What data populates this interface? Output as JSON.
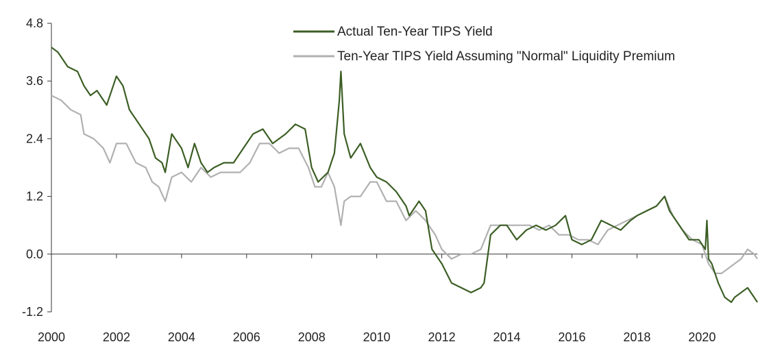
{
  "chart_data": {
    "type": "line",
    "title": "",
    "xlabel": "",
    "ylabel": "",
    "xlim": [
      2000,
      2021.7
    ],
    "ylim": [
      -1.2,
      4.8
    ],
    "x_ticks": [
      "2000",
      "2002",
      "2004",
      "2006",
      "2008",
      "2010",
      "2012",
      "2014",
      "2016",
      "2018",
      "2020"
    ],
    "y_ticks": [
      "4.8",
      "3.6",
      "2.4",
      "1.2",
      "0.0",
      "-1.2"
    ],
    "grid": false,
    "legend_position": "top-right",
    "series": [
      {
        "name": "Actual Ten-Year TIPS Yield",
        "color": "#3b5e24",
        "x": [
          2000.0,
          2000.2,
          2000.5,
          2000.8,
          2001.0,
          2001.2,
          2001.4,
          2001.7,
          2002.0,
          2002.2,
          2002.4,
          2002.6,
          2002.8,
          2003.0,
          2003.2,
          2003.4,
          2003.5,
          2003.7,
          2004.0,
          2004.2,
          2004.4,
          2004.6,
          2004.8,
          2005.0,
          2005.3,
          2005.6,
          2005.9,
          2006.2,
          2006.5,
          2006.8,
          2007.0,
          2007.2,
          2007.5,
          2007.8,
          2008.0,
          2008.2,
          2008.5,
          2008.7,
          2008.85,
          2008.9,
          2009.0,
          2009.2,
          2009.5,
          2009.8,
          2010.0,
          2010.3,
          2010.6,
          2010.9,
          2011.0,
          2011.3,
          2011.5,
          2011.7,
          2011.8,
          2012.0,
          2012.3,
          2012.6,
          2012.9,
          2013.2,
          2013.3,
          2013.5,
          2013.8,
          2014.0,
          2014.3,
          2014.6,
          2014.9,
          2015.2,
          2015.5,
          2015.8,
          2016.0,
          2016.3,
          2016.6,
          2016.9,
          2017.2,
          2017.5,
          2017.8,
          2018.0,
          2018.3,
          2018.6,
          2018.85,
          2019.0,
          2019.3,
          2019.6,
          2019.9,
          2020.1,
          2020.15,
          2020.2,
          2020.3,
          2020.5,
          2020.7,
          2020.9,
          2021.0,
          2021.2,
          2021.4,
          2021.6,
          2021.7
        ],
        "values": [
          4.3,
          4.2,
          3.9,
          3.8,
          3.5,
          3.3,
          3.4,
          3.1,
          3.7,
          3.5,
          3.0,
          2.8,
          2.6,
          2.4,
          2.0,
          1.9,
          1.7,
          2.5,
          2.2,
          1.8,
          2.3,
          1.9,
          1.7,
          1.8,
          1.9,
          1.9,
          2.2,
          2.5,
          2.6,
          2.3,
          2.4,
          2.5,
          2.7,
          2.6,
          1.8,
          1.5,
          1.7,
          2.1,
          3.2,
          3.8,
          2.5,
          2.0,
          2.3,
          1.8,
          1.6,
          1.5,
          1.3,
          1.0,
          0.8,
          1.1,
          0.9,
          0.1,
          0.0,
          -0.2,
          -0.6,
          -0.7,
          -0.8,
          -0.7,
          -0.6,
          0.4,
          0.6,
          0.6,
          0.3,
          0.5,
          0.6,
          0.5,
          0.6,
          0.8,
          0.3,
          0.2,
          0.3,
          0.7,
          0.6,
          0.5,
          0.7,
          0.8,
          0.9,
          1.0,
          1.2,
          0.9,
          0.6,
          0.3,
          0.3,
          0.1,
          0.7,
          -0.1,
          -0.2,
          -0.6,
          -0.9,
          -1.0,
          -0.9,
          -0.8,
          -0.7,
          -0.9,
          -1.0
        ]
      },
      {
        "name": "Ten-Year TIPS Yield Assuming \"Normal\" Liquidity Premium",
        "color": "#b0b0b0",
        "x": [
          2000.0,
          2000.3,
          2000.6,
          2000.9,
          2001.0,
          2001.3,
          2001.6,
          2001.8,
          2002.0,
          2002.3,
          2002.6,
          2002.9,
          2003.1,
          2003.3,
          2003.5,
          2003.7,
          2004.0,
          2004.3,
          2004.6,
          2004.9,
          2005.2,
          2005.5,
          2005.8,
          2006.1,
          2006.4,
          2006.7,
          2007.0,
          2007.3,
          2007.6,
          2007.9,
          2008.1,
          2008.3,
          2008.5,
          2008.7,
          2008.9,
          2009.0,
          2009.2,
          2009.5,
          2009.8,
          2010.0,
          2010.3,
          2010.6,
          2010.9,
          2011.2,
          2011.5,
          2011.8,
          2012.0,
          2012.3,
          2012.6,
          2012.9,
          2013.2,
          2013.5,
          2013.8,
          2014.1,
          2014.4,
          2014.7,
          2015.0,
          2015.3,
          2015.6,
          2015.9,
          2016.2,
          2016.5,
          2016.8,
          2017.1,
          2017.4,
          2017.7,
          2018.0,
          2018.3,
          2018.6,
          2018.85,
          2019.1,
          2019.4,
          2019.7,
          2020.0,
          2020.2,
          2020.4,
          2020.6,
          2020.8,
          2021.0,
          2021.2,
          2021.4,
          2021.6,
          2021.7
        ],
        "values": [
          3.3,
          3.2,
          3.0,
          2.9,
          2.5,
          2.4,
          2.2,
          1.9,
          2.3,
          2.3,
          1.9,
          1.8,
          1.5,
          1.4,
          1.1,
          1.6,
          1.7,
          1.5,
          1.8,
          1.6,
          1.7,
          1.7,
          1.7,
          1.9,
          2.3,
          2.3,
          2.1,
          2.2,
          2.2,
          1.8,
          1.4,
          1.4,
          1.7,
          1.4,
          0.6,
          1.1,
          1.2,
          1.2,
          1.5,
          1.5,
          1.1,
          1.1,
          0.7,
          0.9,
          0.7,
          0.4,
          0.1,
          -0.1,
          0.0,
          0.0,
          0.1,
          0.6,
          0.6,
          0.6,
          0.6,
          0.6,
          0.5,
          0.6,
          0.4,
          0.4,
          0.3,
          0.3,
          0.2,
          0.5,
          0.6,
          0.7,
          0.8,
          0.9,
          1.0,
          1.2,
          0.8,
          0.5,
          0.3,
          0.2,
          -0.2,
          -0.4,
          -0.4,
          -0.3,
          -0.2,
          -0.1,
          0.1,
          0.0,
          -0.1
        ]
      }
    ]
  }
}
